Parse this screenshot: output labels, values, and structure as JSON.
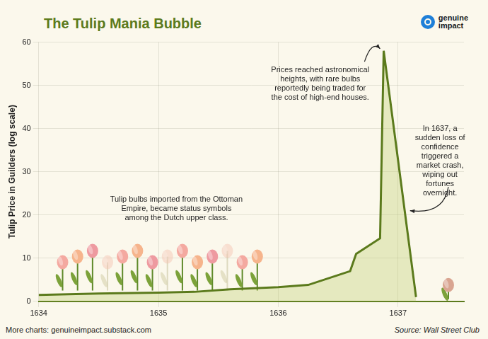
{
  "chart_data": {
    "type": "line",
    "title": "The Tulip Mania Bubble",
    "y_label": "Tulip Price in Guilders (log scale)",
    "x": [
      1634,
      1634.5,
      1635,
      1635.3,
      1635.6,
      1636,
      1636.25,
      1636.6,
      1636.65,
      1636.85,
      1636.88,
      1637.15
    ],
    "values": [
      1.5,
      1.8,
      2.0,
      2.2,
      2.8,
      3.3,
      3.8,
      7,
      11,
      14.6,
      58,
      1
    ],
    "color": "#5b7a1c",
    "xlim": [
      1634,
      1637.55
    ],
    "xticks": [
      1634,
      1635,
      1636,
      1637
    ],
    "ylim": [
      0,
      60
    ],
    "yticks": [
      0,
      10,
      20,
      30,
      40,
      50,
      60
    ],
    "grid": true,
    "annotations": [
      {
        "lines": [
          "Tulip bulbs imported from the Ottoman",
          "Empire, became status symbols",
          "among the Dutch upper class."
        ]
      },
      {
        "lines": [
          "Prices reached astronomical",
          "heights, with rare bulbs",
          "reportedly being traded for",
          "the cost of high-end houses."
        ]
      },
      {
        "lines": [
          "In 1637, a",
          "sudden loss of",
          "confidence",
          "triggered a",
          "market crash,",
          "wiping out",
          "fortunes",
          "overnight."
        ]
      }
    ],
    "brand": [
      "genuine",
      "impact"
    ],
    "footer": "More charts: genuineimpact.substack.com",
    "source": "Source: Wall Street Club"
  }
}
